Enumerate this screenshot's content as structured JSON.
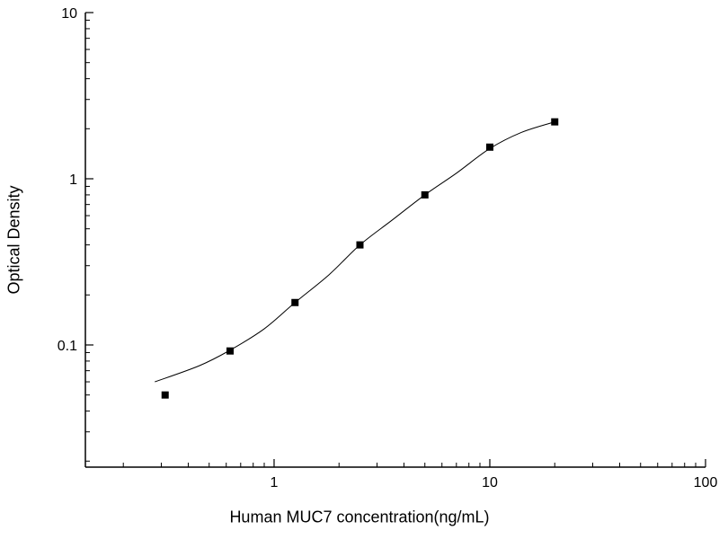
{
  "figure": {
    "background": "#ffffff",
    "axis_color": "#000000"
  },
  "chart_data": {
    "type": "scatter",
    "title": "",
    "xlabel": "Human MUC7 concentration(ng/mL)",
    "ylabel": "Optical Density",
    "x_scale": "log",
    "y_scale": "log",
    "xlim": [
      0.1334,
      100
    ],
    "ylim": [
      0.0184,
      10
    ],
    "grid": false,
    "legend": false,
    "x_major_ticks": [
      1,
      10,
      100
    ],
    "x_tick_labels": [
      "1",
      "10",
      "100"
    ],
    "x_minor_ticks": [
      0.2,
      0.3,
      0.4,
      0.5,
      0.6,
      0.7,
      0.8,
      0.9,
      2,
      3,
      4,
      5,
      6,
      7,
      8,
      9,
      20,
      30,
      40,
      50,
      60,
      70,
      80,
      90
    ],
    "y_major_ticks": [
      0.1,
      1,
      10
    ],
    "y_tick_labels": [
      "0.1",
      "1",
      "10"
    ],
    "y_minor_ticks": [
      0.02,
      0.03,
      0.04,
      0.05,
      0.06,
      0.07,
      0.08,
      0.09,
      0.2,
      0.3,
      0.4,
      0.5,
      0.6,
      0.7,
      0.8,
      0.9,
      2,
      3,
      4,
      5,
      6,
      7,
      8,
      9
    ],
    "series": [
      {
        "name": "standard-points",
        "marker": "square",
        "marker_size": 8,
        "color": "#000000",
        "x": [
          0.3125,
          0.625,
          1.25,
          2.5,
          5,
          10,
          20
        ],
        "y": [
          0.05,
          0.092,
          0.18,
          0.4,
          0.8,
          1.55,
          2.2
        ]
      }
    ],
    "fit_curve": {
      "name": "4pl-fit-curve",
      "color": "#000000",
      "x": [
        0.28,
        0.45,
        0.625,
        0.9,
        1.25,
        1.8,
        2.5,
        3.5,
        5,
        7,
        10,
        14,
        20
      ],
      "y": [
        0.06,
        0.075,
        0.093,
        0.125,
        0.18,
        0.265,
        0.4,
        0.56,
        0.8,
        1.08,
        1.52,
        1.9,
        2.2
      ]
    }
  }
}
